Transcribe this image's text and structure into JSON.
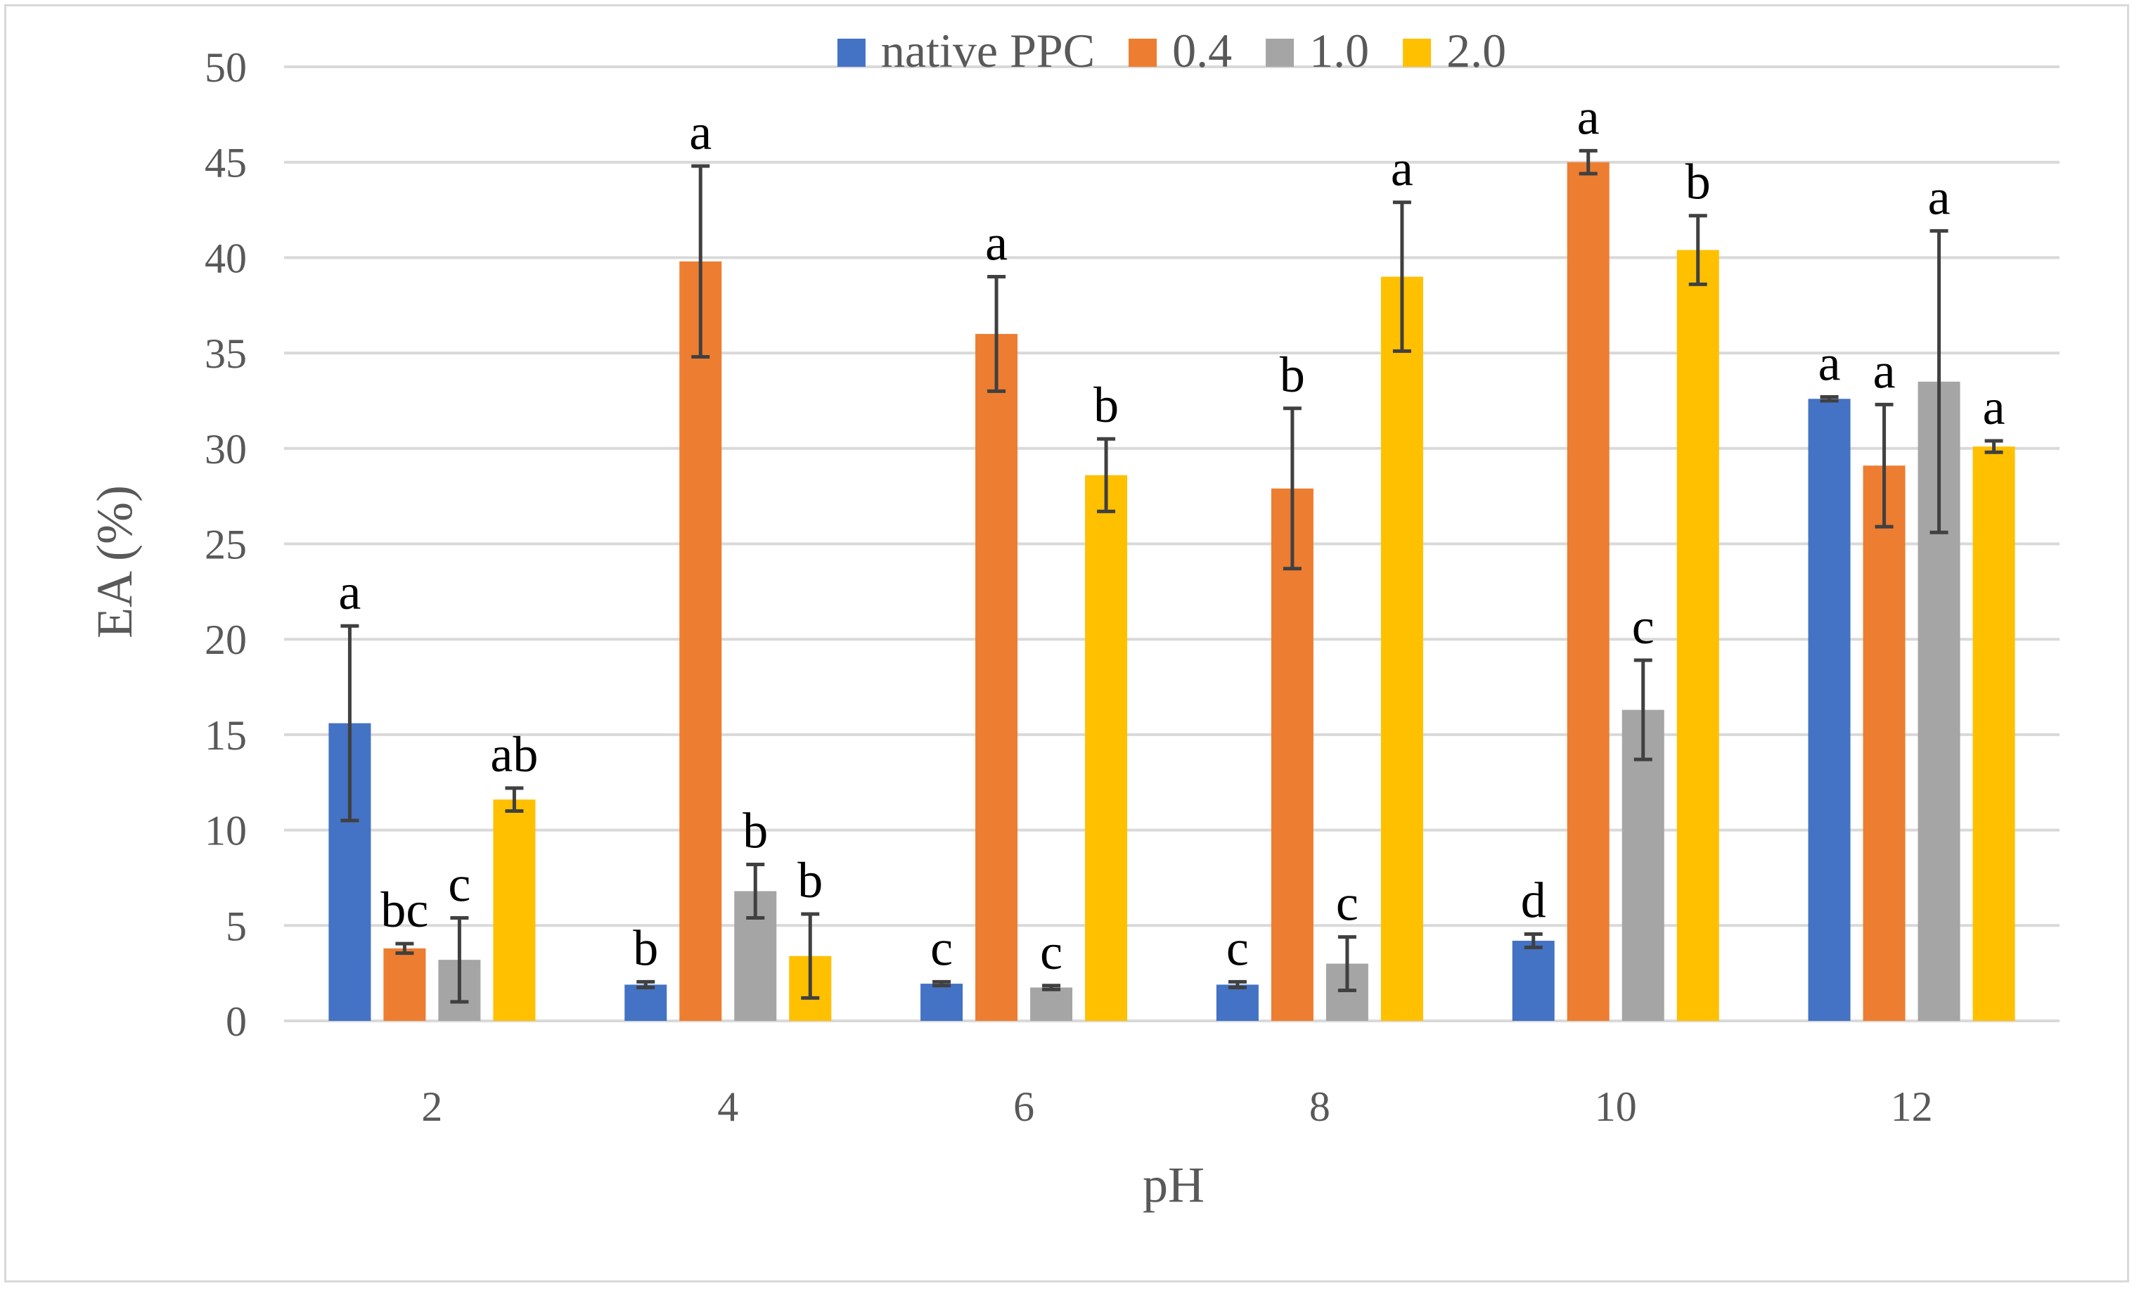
{
  "chart_data": {
    "type": "bar",
    "title": "",
    "xlabel": "pH",
    "ylabel": "EA (%)",
    "ylim": [
      0,
      50
    ],
    "yticks": [
      0,
      5,
      10,
      15,
      20,
      25,
      30,
      35,
      40,
      45,
      50
    ],
    "grid": true,
    "legend_position": "top-center",
    "categories": [
      "2",
      "4",
      "6",
      "8",
      "10",
      "12"
    ],
    "series": [
      {
        "name": "native PPC",
        "color": "#4472C4",
        "values": [
          15.6,
          1.9,
          1.95,
          1.9,
          4.2,
          32.6
        ],
        "errors": [
          5.1,
          0.15,
          0.1,
          0.15,
          0.35,
          0.1
        ],
        "labels": [
          "a",
          "b",
          "c",
          "c",
          "d",
          "a"
        ]
      },
      {
        "name": "0.4",
        "color": "#ED7D31",
        "values": [
          3.8,
          39.8,
          36.0,
          27.9,
          45.0,
          29.1
        ],
        "errors": [
          0.25,
          5.0,
          3.0,
          4.2,
          0.6,
          3.2
        ],
        "labels": [
          "bc",
          "a",
          "a",
          "b",
          "a",
          "a"
        ]
      },
      {
        "name": "1.0",
        "color": "#A5A5A5",
        "values": [
          3.2,
          6.8,
          1.75,
          3.0,
          16.3,
          33.5
        ],
        "errors": [
          2.2,
          1.4,
          0.1,
          1.4,
          2.6,
          7.9
        ],
        "labels": [
          "c",
          "b",
          "c",
          "c",
          "c",
          "a"
        ]
      },
      {
        "name": "2.0",
        "color": "#FFC000",
        "values": [
          11.6,
          3.4,
          28.6,
          39.0,
          40.4,
          30.1
        ],
        "errors": [
          0.6,
          2.2,
          1.9,
          3.9,
          1.8,
          0.3
        ],
        "labels": [
          "ab",
          "b",
          "b",
          "a",
          "b",
          "a"
        ]
      }
    ]
  }
}
